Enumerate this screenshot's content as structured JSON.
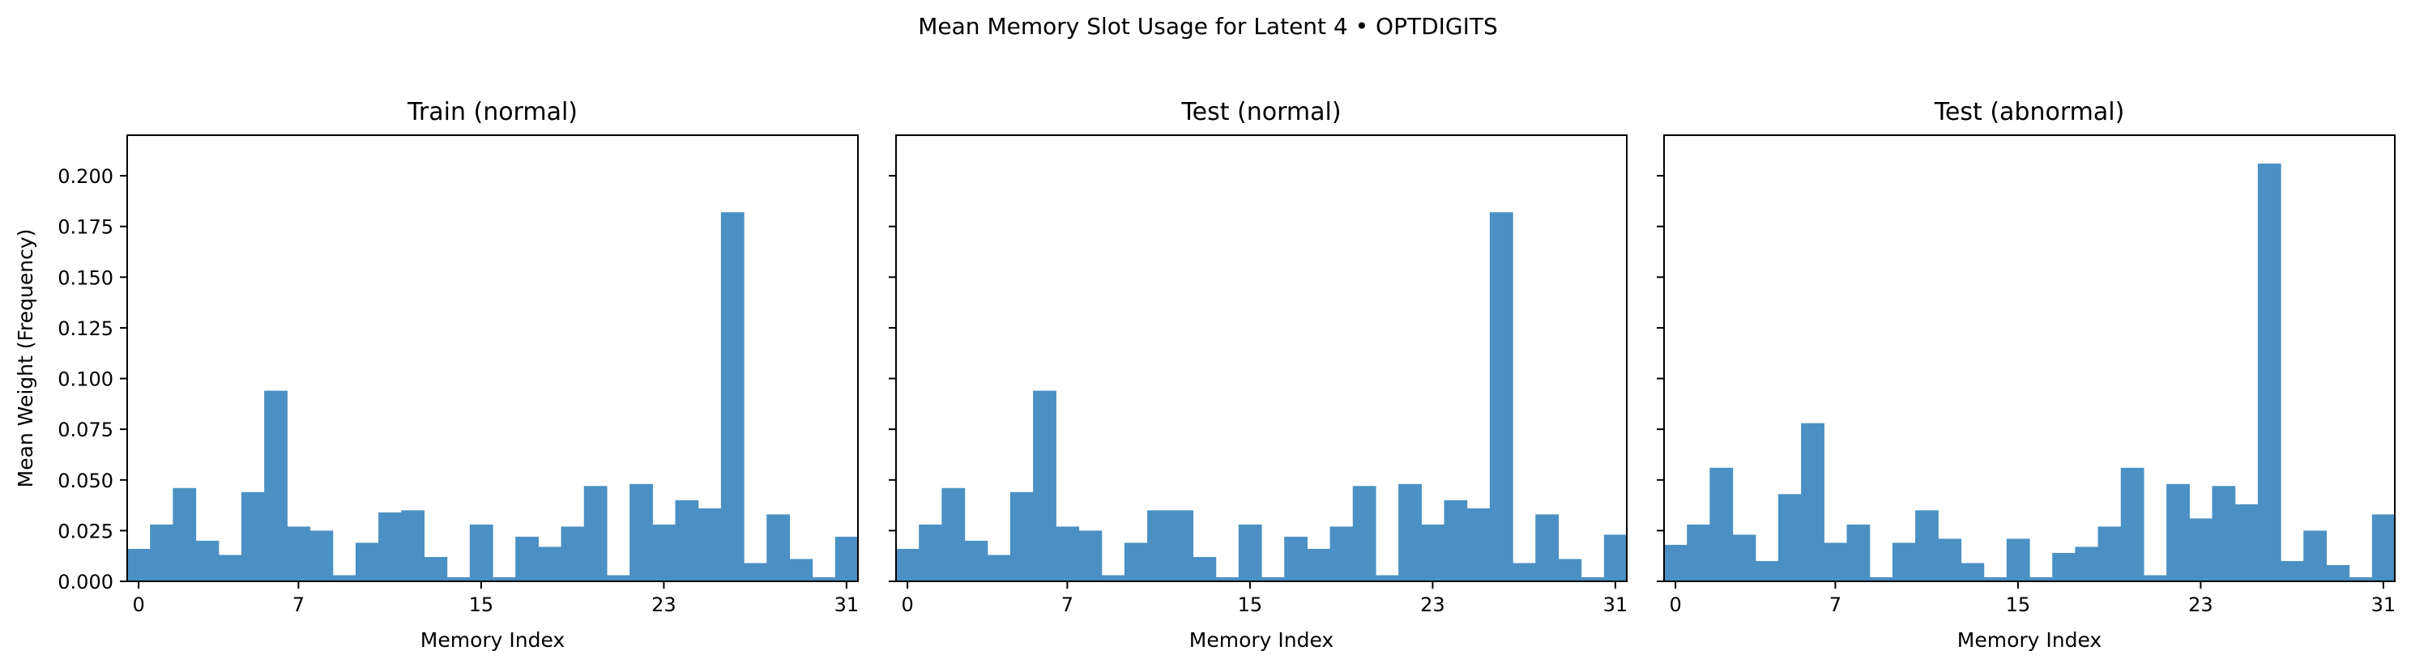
{
  "figure": {
    "title": "Mean Memory Slot Usage for Latent 4 • OPTDIGITS",
    "bar_color": "#4a90c4"
  },
  "chart_data": [
    {
      "type": "bar",
      "title": "Train (normal)",
      "xlabel": "Memory Index",
      "ylabel": "Mean Weight (Frequency)",
      "xlim": [
        -0.5,
        31.5
      ],
      "ylim": [
        0,
        0.22
      ],
      "xticks": [
        0,
        7,
        15,
        23,
        31
      ],
      "yticks": [
        0.0,
        0.025,
        0.05,
        0.075,
        0.1,
        0.125,
        0.15,
        0.175,
        0.2
      ],
      "categories": [
        0,
        1,
        2,
        3,
        4,
        5,
        6,
        7,
        8,
        9,
        10,
        11,
        12,
        13,
        14,
        15,
        16,
        17,
        18,
        19,
        20,
        21,
        22,
        23,
        24,
        25,
        26,
        27,
        28,
        29,
        30,
        31
      ],
      "values": [
        0.016,
        0.028,
        0.046,
        0.02,
        0.013,
        0.044,
        0.094,
        0.027,
        0.025,
        0.003,
        0.019,
        0.034,
        0.035,
        0.012,
        0.002,
        0.028,
        0.002,
        0.022,
        0.017,
        0.027,
        0.047,
        0.003,
        0.048,
        0.028,
        0.04,
        0.036,
        0.182,
        0.009,
        0.033,
        0.011,
        0.002,
        0.022
      ]
    },
    {
      "type": "bar",
      "title": "Test (normal)",
      "xlabel": "Memory Index",
      "ylabel": "",
      "xlim": [
        -0.5,
        31.5
      ],
      "ylim": [
        0,
        0.22
      ],
      "xticks": [
        0,
        7,
        15,
        23,
        31
      ],
      "yticks": [
        0.0,
        0.025,
        0.05,
        0.075,
        0.1,
        0.125,
        0.15,
        0.175,
        0.2
      ],
      "categories": [
        0,
        1,
        2,
        3,
        4,
        5,
        6,
        7,
        8,
        9,
        10,
        11,
        12,
        13,
        14,
        15,
        16,
        17,
        18,
        19,
        20,
        21,
        22,
        23,
        24,
        25,
        26,
        27,
        28,
        29,
        30,
        31
      ],
      "values": [
        0.016,
        0.028,
        0.046,
        0.02,
        0.013,
        0.044,
        0.094,
        0.027,
        0.025,
        0.003,
        0.019,
        0.035,
        0.035,
        0.012,
        0.002,
        0.028,
        0.002,
        0.022,
        0.016,
        0.027,
        0.047,
        0.003,
        0.048,
        0.028,
        0.04,
        0.036,
        0.182,
        0.009,
        0.033,
        0.011,
        0.002,
        0.023
      ]
    },
    {
      "type": "bar",
      "title": "Test (abnormal)",
      "xlabel": "Memory Index",
      "ylabel": "",
      "xlim": [
        -0.5,
        31.5
      ],
      "ylim": [
        0,
        0.22
      ],
      "xticks": [
        0,
        7,
        15,
        23,
        31
      ],
      "yticks": [
        0.0,
        0.025,
        0.05,
        0.075,
        0.1,
        0.125,
        0.15,
        0.175,
        0.2
      ],
      "categories": [
        0,
        1,
        2,
        3,
        4,
        5,
        6,
        7,
        8,
        9,
        10,
        11,
        12,
        13,
        14,
        15,
        16,
        17,
        18,
        19,
        20,
        21,
        22,
        23,
        24,
        25,
        26,
        27,
        28,
        29,
        30,
        31
      ],
      "values": [
        0.018,
        0.028,
        0.056,
        0.023,
        0.01,
        0.043,
        0.078,
        0.019,
        0.028,
        0.002,
        0.019,
        0.035,
        0.021,
        0.009,
        0.002,
        0.021,
        0.002,
        0.014,
        0.017,
        0.027,
        0.056,
        0.003,
        0.048,
        0.031,
        0.047,
        0.038,
        0.206,
        0.01,
        0.025,
        0.008,
        0.002,
        0.033
      ]
    }
  ]
}
